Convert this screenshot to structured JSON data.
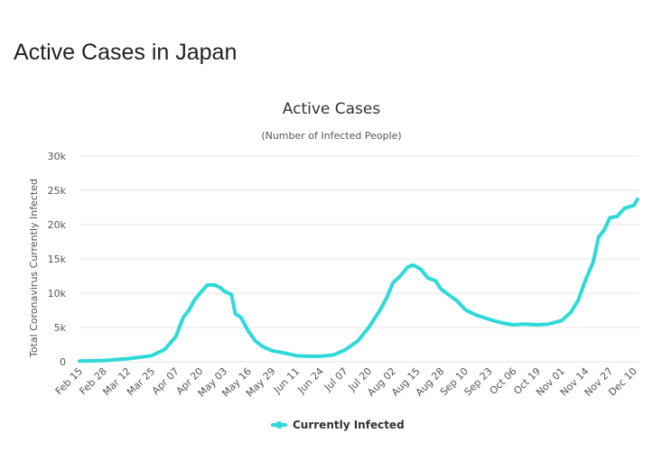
{
  "page": {
    "heading": "Active Cases in Japan"
  },
  "colors": {
    "series": "#2ed9d9",
    "grid": "#e6e6e6",
    "text": "#555555"
  },
  "chart_data": {
    "type": "line",
    "title": "Active Cases",
    "subtitle": "(Number of Infected People)",
    "xlabel": "",
    "ylabel": "Total Coronavirus Currently Infected",
    "ylim": [
      0,
      30000
    ],
    "yticks": [
      0,
      5000,
      10000,
      15000,
      20000,
      25000,
      30000
    ],
    "ytick_labels": [
      "0",
      "5k",
      "10k",
      "15k",
      "20k",
      "25k",
      "30k"
    ],
    "xlim": [
      "Feb 15",
      "Dec 13"
    ],
    "xtick_labels": [
      "Feb 15",
      "Feb 28",
      "Mar 12",
      "Mar 25",
      "Apr 07",
      "Apr 20",
      "May 03",
      "May 16",
      "May 29",
      "Jun 11",
      "Jun 24",
      "Jul 07",
      "Jul 20",
      "Aug 02",
      "Aug 15",
      "Aug 28",
      "Sep 10",
      "Sep 23",
      "Oct 06",
      "Oct 19",
      "Nov 01",
      "Nov 14",
      "Nov 27",
      "Dec 10"
    ],
    "grid": true,
    "legend": "bottom-center",
    "series": [
      {
        "name": "Currently Infected",
        "points": [
          [
            "Feb 15",
            100
          ],
          [
            "Feb 28",
            180
          ],
          [
            "Mar 12",
            450
          ],
          [
            "Mar 18",
            650
          ],
          [
            "Mar 25",
            900
          ],
          [
            "Apr 01",
            1800
          ],
          [
            "Apr 07",
            3700
          ],
          [
            "Apr 11",
            6500
          ],
          [
            "Apr 14",
            7500
          ],
          [
            "Apr 17",
            9000
          ],
          [
            "Apr 20",
            10000
          ],
          [
            "Apr 24",
            11200
          ],
          [
            "Apr 28",
            11200
          ],
          [
            "May 01",
            10800
          ],
          [
            "May 03",
            10300
          ],
          [
            "May 07",
            9800
          ],
          [
            "May 09",
            7000
          ],
          [
            "May 12",
            6500
          ],
          [
            "May 16",
            4500
          ],
          [
            "May 20",
            3000
          ],
          [
            "May 24",
            2200
          ],
          [
            "May 29",
            1600
          ],
          [
            "Jun 04",
            1300
          ],
          [
            "Jun 11",
            900
          ],
          [
            "Jun 17",
            800
          ],
          [
            "Jun 24",
            800
          ],
          [
            "Jul 01",
            1000
          ],
          [
            "Jul 07",
            1700
          ],
          [
            "Jul 14",
            3000
          ],
          [
            "Jul 20",
            5000
          ],
          [
            "Jul 26",
            7500
          ],
          [
            "Jul 30",
            9500
          ],
          [
            "Aug 02",
            11500
          ],
          [
            "Aug 06",
            12500
          ],
          [
            "Aug 10",
            13800
          ],
          [
            "Aug 13",
            14100
          ],
          [
            "Aug 17",
            13500
          ],
          [
            "Aug 21",
            12200
          ],
          [
            "Aug 25",
            11800
          ],
          [
            "Aug 28",
            10600
          ],
          [
            "Sep 02",
            9600
          ],
          [
            "Sep 06",
            8800
          ],
          [
            "Sep 10",
            7600
          ],
          [
            "Sep 16",
            6800
          ],
          [
            "Sep 23",
            6200
          ],
          [
            "Sep 28",
            5800
          ],
          [
            "Oct 01",
            5600
          ],
          [
            "Oct 06",
            5400
          ],
          [
            "Oct 12",
            5500
          ],
          [
            "Oct 19",
            5400
          ],
          [
            "Oct 25",
            5500
          ],
          [
            "Nov 01",
            6000
          ],
          [
            "Nov 06",
            7200
          ],
          [
            "Nov 10",
            9000
          ],
          [
            "Nov 14",
            12000
          ],
          [
            "Nov 18",
            14500
          ],
          [
            "Nov 21",
            18200
          ],
          [
            "Nov 24",
            19200
          ],
          [
            "Nov 27",
            21000
          ],
          [
            "Dec 01",
            21200
          ],
          [
            "Dec 05",
            22400
          ],
          [
            "Dec 10",
            22800
          ],
          [
            "Dec 12",
            23700
          ]
        ]
      }
    ]
  }
}
